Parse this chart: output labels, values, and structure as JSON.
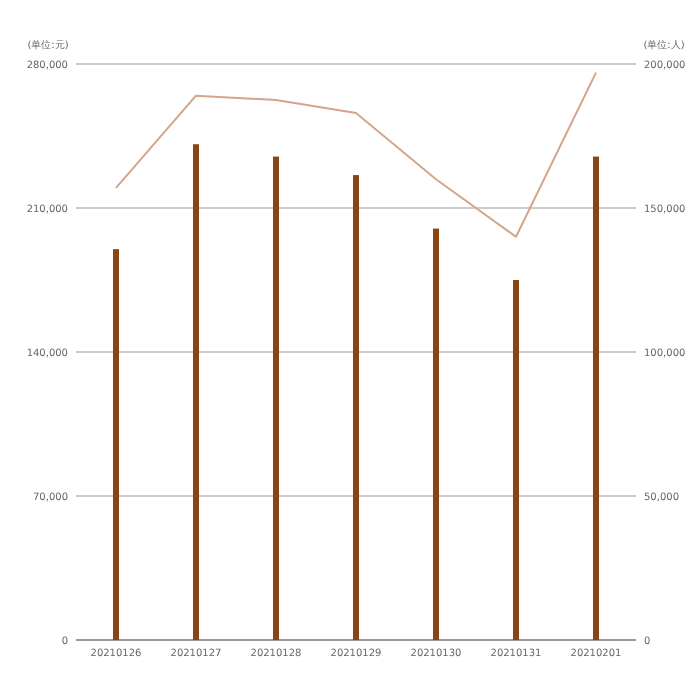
{
  "chart_data": {
    "type": "bar",
    "ylabel": "(单位:元)",
    "y2label": "(单位:人)",
    "categories": [
      "20210126",
      "20210127",
      "20210128",
      "20210129",
      "20210130",
      "20210131",
      "20210201"
    ],
    "series": [
      {
        "color": "#8b4513",
        "values": [
          190000,
          241000,
          235000,
          226000,
          200000,
          175000,
          235000
        ]
      },
      {
        "type": "line",
        "axis": "y2",
        "color": "#d4a58a",
        "values": [
          157000,
          189000,
          187500,
          183000,
          160000,
          140000,
          197000
        ]
      }
    ],
    "ylim": [
      0,
      280000
    ],
    "yticks": [
      {
        "value": 0,
        "label": "0"
      },
      {
        "value": 70000,
        "label": "70,000"
      },
      {
        "value": 140000,
        "label": "140,000"
      },
      {
        "value": 210000,
        "label": "210,000"
      },
      {
        "value": 280000,
        "label": "280,000"
      }
    ],
    "y2lim": [
      0,
      200000
    ],
    "y2ticks": [
      {
        "value": 0,
        "label": "0"
      },
      {
        "value": 50000,
        "label": "50,000"
      },
      {
        "value": 100000,
        "label": "100,000"
      },
      {
        "value": 150000,
        "label": "150,000"
      },
      {
        "value": 200000,
        "label": "200,000"
      }
    ],
    "grid": "y"
  }
}
